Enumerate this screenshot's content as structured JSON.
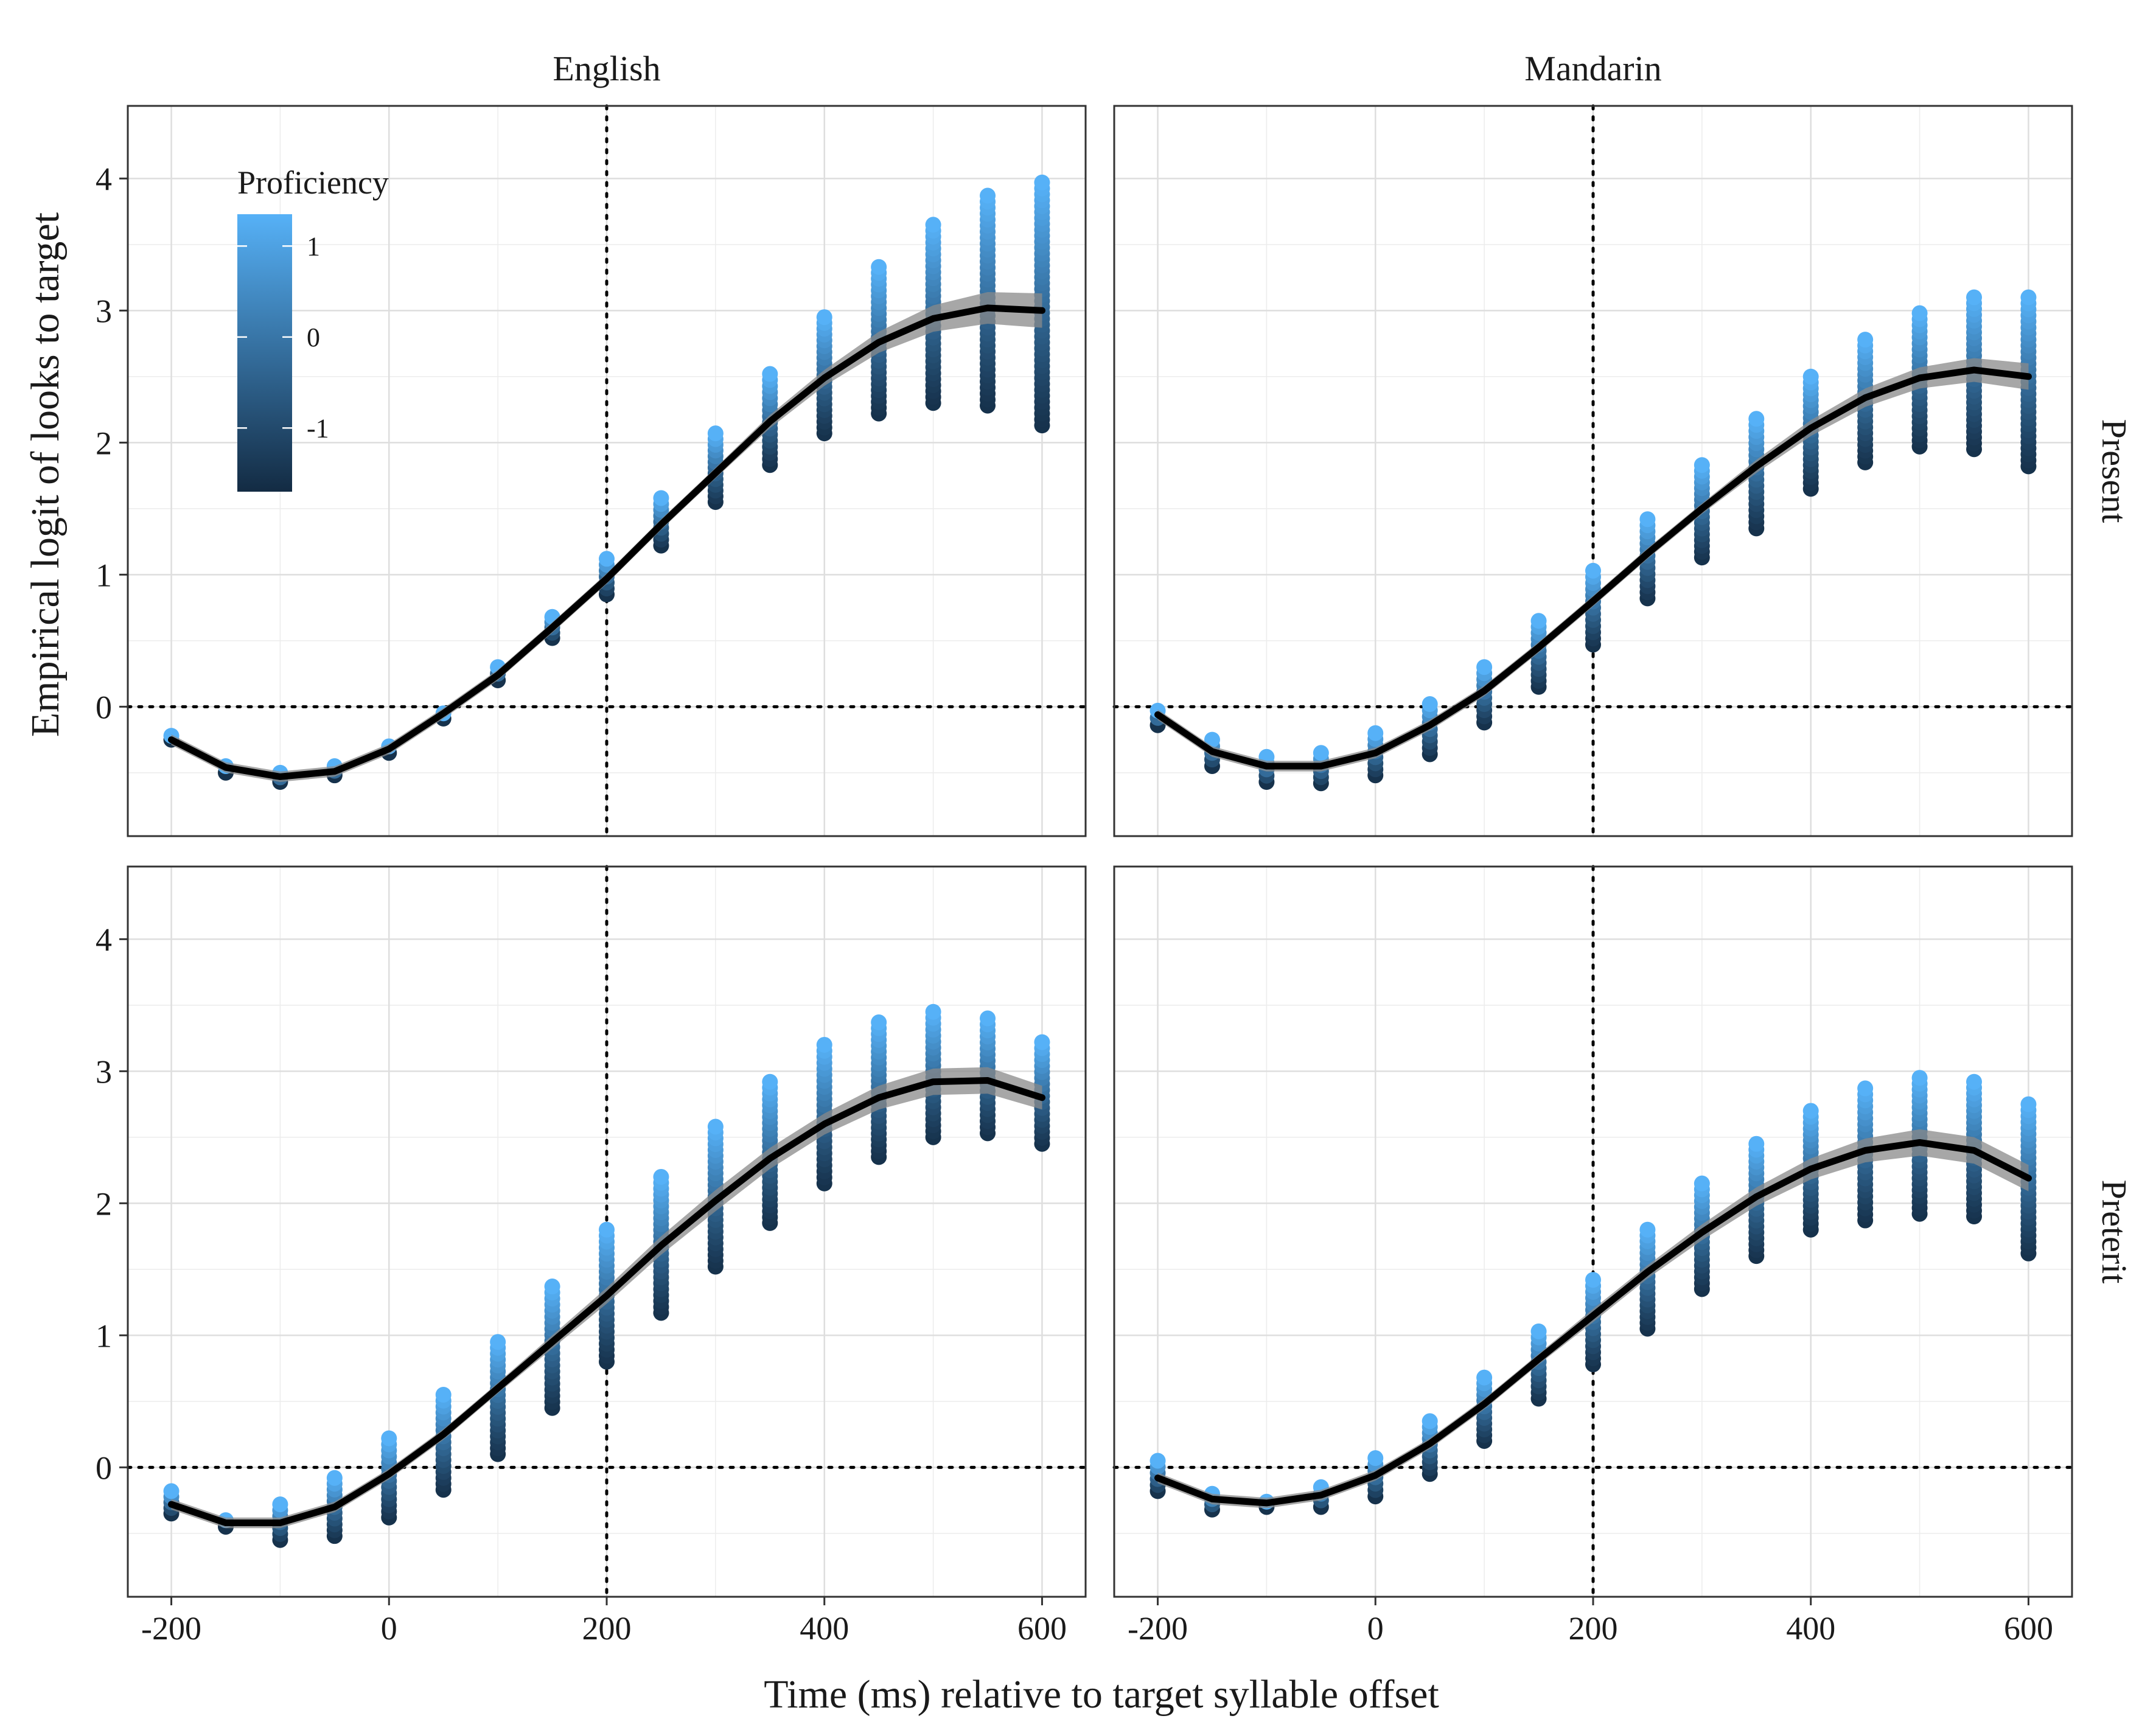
{
  "chart_data": {
    "type": "scatter",
    "xlabel": "Time (ms) relative to target syllable offset",
    "ylabel": "Empirical logit of looks to target",
    "col_facets": [
      "English",
      "Mandarin"
    ],
    "row_facets": [
      "Present",
      "Preterit"
    ],
    "x_ticks": [
      -200,
      0,
      200,
      400,
      600
    ],
    "x_tick_labels": [
      "-200",
      "0",
      "200",
      "400",
      "600"
    ],
    "y_ticks": [
      0,
      1,
      2,
      3,
      4
    ],
    "y_tick_labels": [
      "0",
      "1",
      "2",
      "3",
      "4"
    ],
    "xlim": [
      -240,
      640
    ],
    "ylim": [
      -0.98,
      4.55
    ],
    "reference_lines": {
      "x": 200,
      "y": 0,
      "style": "dotted"
    },
    "legend": {
      "title": "Proficiency",
      "placement": "inside-top-left",
      "ticks": [
        1,
        0,
        -1
      ],
      "tick_labels": [
        "1",
        "0",
        "-1"
      ],
      "range": [
        -1.7,
        1.35
      ],
      "color_low": "#132B43",
      "color_high": "#56B1F7"
    },
    "line_color": "#000000",
    "ribbon_color": "#8a8a8a",
    "panels": [
      {
        "col": "English",
        "row": "Present",
        "time": [
          -200,
          -150,
          -100,
          -50,
          0,
          50,
          100,
          150,
          200,
          250,
          300,
          350,
          400,
          450,
          500,
          550,
          600
        ],
        "point_range": [
          [
            -0.25,
            -0.22
          ],
          [
            -0.5,
            -0.45
          ],
          [
            -0.57,
            -0.5
          ],
          [
            -0.52,
            -0.45
          ],
          [
            -0.35,
            -0.3
          ],
          [
            -0.09,
            -0.05
          ],
          [
            0.2,
            0.3
          ],
          [
            0.52,
            0.68
          ],
          [
            0.85,
            1.12
          ],
          [
            1.22,
            1.58
          ],
          [
            1.55,
            2.07
          ],
          [
            1.83,
            2.52
          ],
          [
            2.07,
            2.95
          ],
          [
            2.22,
            3.33
          ],
          [
            2.3,
            3.65
          ],
          [
            2.28,
            3.87
          ],
          [
            2.13,
            3.97
          ]
        ],
        "fit": [
          -0.25,
          -0.46,
          -0.53,
          -0.49,
          -0.32,
          -0.05,
          0.24,
          0.6,
          0.97,
          1.38,
          1.77,
          2.16,
          2.49,
          2.76,
          2.94,
          3.02,
          3.0
        ],
        "fit_se": [
          0.01,
          0.01,
          0.01,
          0.01,
          0.01,
          0.01,
          0.01,
          0.01,
          0.01,
          0.01,
          0.01,
          0.02,
          0.03,
          0.05,
          0.07,
          0.09,
          0.1
        ]
      },
      {
        "col": "Mandarin",
        "row": "Present",
        "time": [
          -200,
          -150,
          -100,
          -50,
          0,
          50,
          100,
          150,
          200,
          250,
          300,
          350,
          400,
          450,
          500,
          550,
          600
        ],
        "point_range": [
          [
            -0.14,
            -0.03
          ],
          [
            -0.45,
            -0.25
          ],
          [
            -0.57,
            -0.38
          ],
          [
            -0.58,
            -0.35
          ],
          [
            -0.52,
            -0.2
          ],
          [
            -0.36,
            0.02
          ],
          [
            -0.12,
            0.3
          ],
          [
            0.15,
            0.65
          ],
          [
            0.47,
            1.03
          ],
          [
            0.82,
            1.42
          ],
          [
            1.13,
            1.83
          ],
          [
            1.35,
            2.18
          ],
          [
            1.65,
            2.5
          ],
          [
            1.85,
            2.78
          ],
          [
            1.97,
            2.98
          ],
          [
            1.95,
            3.1
          ],
          [
            1.82,
            3.1
          ]
        ],
        "fit": [
          -0.06,
          -0.34,
          -0.45,
          -0.45,
          -0.35,
          -0.14,
          0.12,
          0.45,
          0.8,
          1.16,
          1.5,
          1.82,
          2.11,
          2.34,
          2.49,
          2.55,
          2.5
        ],
        "fit_se": [
          0.01,
          0.01,
          0.01,
          0.01,
          0.01,
          0.01,
          0.01,
          0.01,
          0.01,
          0.01,
          0.01,
          0.02,
          0.03,
          0.04,
          0.05,
          0.06,
          0.07
        ]
      },
      {
        "col": "English",
        "row": "Preterit",
        "time": [
          -200,
          -150,
          -100,
          -50,
          0,
          50,
          100,
          150,
          200,
          250,
          300,
          350,
          400,
          450,
          500,
          550,
          600
        ],
        "point_range": [
          [
            -0.35,
            -0.18
          ],
          [
            -0.45,
            -0.4
          ],
          [
            -0.55,
            -0.28
          ],
          [
            -0.52,
            -0.08
          ],
          [
            -0.38,
            0.22
          ],
          [
            -0.17,
            0.55
          ],
          [
            0.1,
            0.95
          ],
          [
            0.45,
            1.37
          ],
          [
            0.8,
            1.8
          ],
          [
            1.17,
            2.2
          ],
          [
            1.52,
            2.58
          ],
          [
            1.85,
            2.92
          ],
          [
            2.15,
            3.2
          ],
          [
            2.35,
            3.37
          ],
          [
            2.5,
            3.45
          ],
          [
            2.53,
            3.4
          ],
          [
            2.45,
            3.22
          ]
        ],
        "fit": [
          -0.28,
          -0.42,
          -0.42,
          -0.3,
          -0.05,
          0.25,
          0.6,
          0.95,
          1.3,
          1.68,
          2.02,
          2.34,
          2.6,
          2.8,
          2.92,
          2.93,
          2.8
        ],
        "fit_se": [
          0.01,
          0.01,
          0.01,
          0.01,
          0.01,
          0.01,
          0.01,
          0.02,
          0.03,
          0.04,
          0.05,
          0.05,
          0.05,
          0.06,
          0.07,
          0.07,
          0.06
        ]
      },
      {
        "col": "Mandarin",
        "row": "Preterit",
        "time": [
          -200,
          -150,
          -100,
          -50,
          0,
          50,
          100,
          150,
          200,
          250,
          300,
          350,
          400,
          450,
          500,
          550,
          600
        ],
        "point_range": [
          [
            -0.18,
            0.05
          ],
          [
            -0.32,
            -0.2
          ],
          [
            -0.3,
            -0.26
          ],
          [
            -0.3,
            -0.15
          ],
          [
            -0.22,
            0.07
          ],
          [
            -0.05,
            0.35
          ],
          [
            0.2,
            0.68
          ],
          [
            0.52,
            1.03
          ],
          [
            0.78,
            1.42
          ],
          [
            1.05,
            1.8
          ],
          [
            1.35,
            2.15
          ],
          [
            1.6,
            2.45
          ],
          [
            1.8,
            2.7
          ],
          [
            1.87,
            2.87
          ],
          [
            1.92,
            2.95
          ],
          [
            1.9,
            2.92
          ],
          [
            1.62,
            2.75
          ]
        ],
        "fit": [
          -0.08,
          -0.24,
          -0.27,
          -0.21,
          -0.06,
          0.18,
          0.48,
          0.82,
          1.15,
          1.48,
          1.78,
          2.05,
          2.26,
          2.4,
          2.46,
          2.4,
          2.19
        ],
        "fit_se": [
          0.01,
          0.01,
          0.01,
          0.01,
          0.01,
          0.01,
          0.01,
          0.01,
          0.02,
          0.02,
          0.03,
          0.04,
          0.05,
          0.06,
          0.07,
          0.07,
          0.07
        ]
      }
    ]
  }
}
